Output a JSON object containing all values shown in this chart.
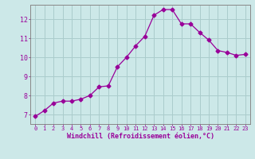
{
  "x": [
    0,
    1,
    2,
    3,
    4,
    5,
    6,
    7,
    8,
    9,
    10,
    11,
    12,
    13,
    14,
    15,
    16,
    17,
    18,
    19,
    20,
    21,
    22,
    23
  ],
  "y": [
    6.9,
    7.2,
    7.6,
    7.7,
    7.7,
    7.8,
    8.0,
    8.45,
    8.5,
    9.5,
    10.0,
    10.6,
    11.1,
    12.2,
    12.5,
    12.5,
    11.75,
    11.75,
    11.3,
    10.9,
    10.35,
    10.25,
    10.1,
    10.15
  ],
  "line_color": "#990099",
  "marker": "D",
  "marker_size": 2.5,
  "bg_color": "#cce8e8",
  "grid_color": "#aacccc",
  "xlabel": "Windchill (Refroidissement éolien,°C)",
  "xlim": [
    -0.5,
    23.5
  ],
  "ylim": [
    6.5,
    12.75
  ],
  "yticks": [
    7,
    8,
    9,
    10,
    11,
    12
  ],
  "xticks": [
    0,
    1,
    2,
    3,
    4,
    5,
    6,
    7,
    8,
    9,
    10,
    11,
    12,
    13,
    14,
    15,
    16,
    17,
    18,
    19,
    20,
    21,
    22,
    23
  ],
  "tick_color": "#990099",
  "spine_color": "#888888",
  "tick_fontsize": 5.0,
  "ytick_fontsize": 6.0,
  "xlabel_fontsize": 6.0
}
